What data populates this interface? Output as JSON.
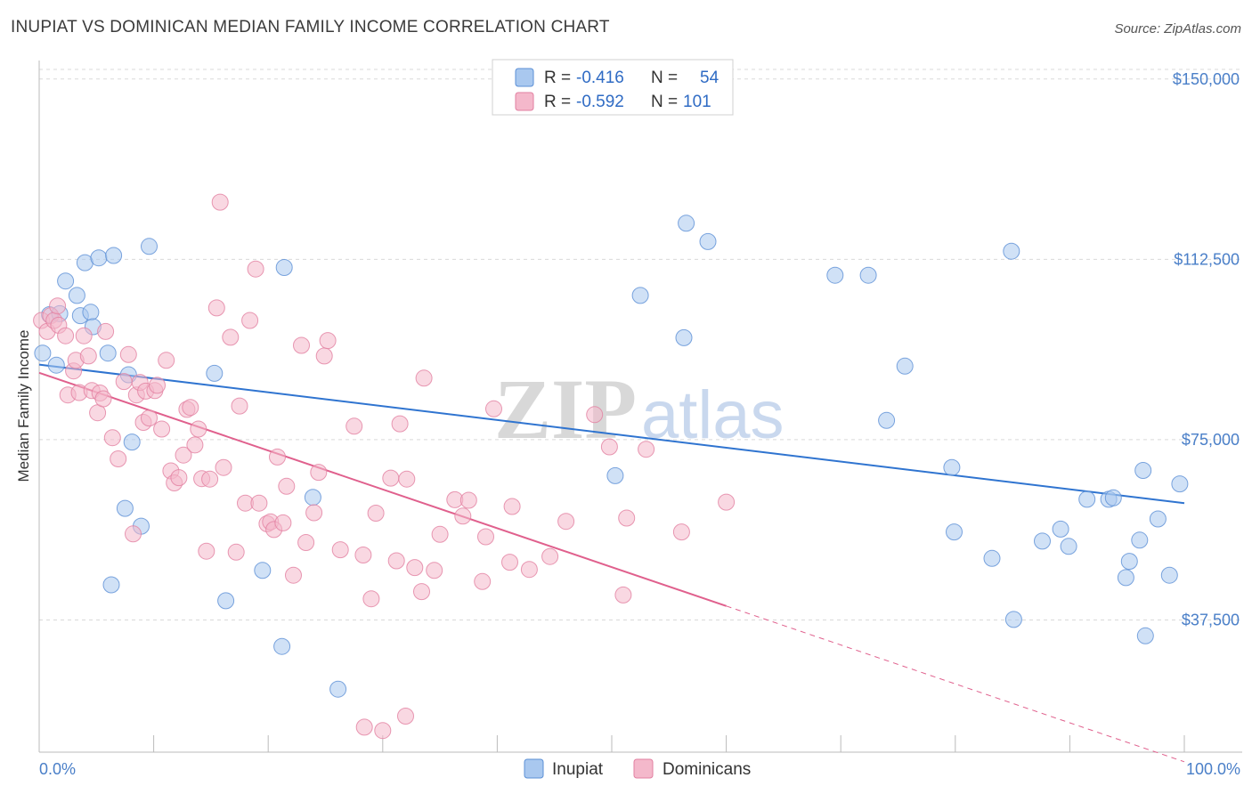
{
  "title": "INUPIAT VS DOMINICAN MEDIAN FAMILY INCOME CORRELATION CHART",
  "source": "Source: ZipAtlas.com",
  "watermark": {
    "zip": "ZIP",
    "atlas": "atlas"
  },
  "colors": {
    "inupiat_fill": "#a9c8ef",
    "inupiat_stroke": "#5b8fd6",
    "inupiat_line": "#2f74d0",
    "dominican_fill": "#f4b8cb",
    "dominican_stroke": "#e27fa0",
    "dominican_line": "#e0608d",
    "grid": "#d9d9d9",
    "axis_text": "#4a7fc8"
  },
  "legend": {
    "rows": [
      {
        "r_label": "R =",
        "r_value": "-0.416",
        "n_label": "N =",
        "n_value": "54"
      },
      {
        "r_label": "R =",
        "r_value": "-0.592",
        "n_label": "N =",
        "n_value": "101"
      }
    ]
  },
  "bottom_legend": [
    "Inupiat",
    "Dominicans"
  ],
  "chart_data": {
    "type": "scatter",
    "title": "INUPIAT VS DOMINICAN MEDIAN FAMILY INCOME CORRELATION CHART",
    "xlabel": "",
    "ylabel": "Median Family Income",
    "xlim": [
      0,
      100
    ],
    "ylim": [
      10000,
      160000
    ],
    "x_tick_labels": [
      "0.0%",
      "100.0%"
    ],
    "y_ticks": [
      37500,
      75000,
      112500,
      150000
    ],
    "y_tick_labels": [
      "$37,500",
      "$75,000",
      "$112,500",
      "$150,000"
    ],
    "grid": true,
    "legend_position": "top-center",
    "series": [
      {
        "name": "Inupiat",
        "r": -0.416,
        "n": 54,
        "trend": {
          "x0": 0,
          "y0": 90600,
          "x1": 100,
          "y1": 61800,
          "extrapolated": false
        },
        "points": [
          [
            0.3,
            93000
          ],
          [
            0.9,
            101000
          ],
          [
            1.5,
            90500
          ],
          [
            1.8,
            101200
          ],
          [
            2.3,
            108000
          ],
          [
            3.3,
            105000
          ],
          [
            3.6,
            100800
          ],
          [
            4.0,
            111800
          ],
          [
            4.5,
            101500
          ],
          [
            4.7,
            98500
          ],
          [
            5.2,
            112800
          ],
          [
            6.0,
            93000
          ],
          [
            6.5,
            113300
          ],
          [
            7.5,
            60700
          ],
          [
            7.8,
            88500
          ],
          [
            8.1,
            74500
          ],
          [
            8.9,
            57000
          ],
          [
            9.6,
            115200
          ],
          [
            6.3,
            44800
          ],
          [
            15.3,
            88800
          ],
          [
            16.3,
            41500
          ],
          [
            19.5,
            47800
          ],
          [
            21.2,
            32000
          ],
          [
            21.4,
            110800
          ],
          [
            23.9,
            63000
          ],
          [
            26.1,
            23100
          ],
          [
            50.3,
            67500
          ],
          [
            52.5,
            105000
          ],
          [
            56.3,
            96200
          ],
          [
            56.5,
            120000
          ],
          [
            58.4,
            116200
          ],
          [
            69.5,
            109200
          ],
          [
            72.4,
            109200
          ],
          [
            75.6,
            90300
          ],
          [
            74.0,
            79000
          ],
          [
            79.7,
            69200
          ],
          [
            79.9,
            55800
          ],
          [
            83.2,
            50300
          ],
          [
            84.9,
            114200
          ],
          [
            85.1,
            37600
          ],
          [
            87.6,
            53900
          ],
          [
            89.2,
            56400
          ],
          [
            89.9,
            52800
          ],
          [
            91.5,
            62600
          ],
          [
            93.4,
            62600
          ],
          [
            93.8,
            62900
          ],
          [
            94.9,
            46300
          ],
          [
            95.2,
            49700
          ],
          [
            96.1,
            54100
          ],
          [
            96.4,
            68600
          ],
          [
            96.6,
            34200
          ],
          [
            97.7,
            58500
          ],
          [
            98.7,
            46800
          ],
          [
            99.6,
            65800
          ]
        ]
      },
      {
        "name": "Dominicans",
        "r": -0.592,
        "n": 101,
        "trend": {
          "x0": 0,
          "y0": 88900,
          "x1": 60,
          "y1": 40400,
          "extrapolated_to": {
            "x": 100,
            "y": 8000
          }
        },
        "points": [
          [
            0.2,
            99800
          ],
          [
            0.7,
            97500
          ],
          [
            1.0,
            100800
          ],
          [
            1.3,
            99800
          ],
          [
            1.6,
            102800
          ],
          [
            1.7,
            98800
          ],
          [
            2.3,
            96600
          ],
          [
            2.5,
            84300
          ],
          [
            3.0,
            89300
          ],
          [
            3.2,
            91500
          ],
          [
            3.5,
            84800
          ],
          [
            3.9,
            96600
          ],
          [
            4.3,
            92400
          ],
          [
            4.6,
            85200
          ],
          [
            5.1,
            80600
          ],
          [
            5.3,
            84700
          ],
          [
            5.6,
            83500
          ],
          [
            5.8,
            97500
          ],
          [
            6.4,
            75400
          ],
          [
            6.9,
            71000
          ],
          [
            7.4,
            87100
          ],
          [
            7.8,
            92700
          ],
          [
            8.2,
            55400
          ],
          [
            8.5,
            84300
          ],
          [
            8.8,
            86900
          ],
          [
            9.1,
            78600
          ],
          [
            9.3,
            85100
          ],
          [
            9.6,
            79500
          ],
          [
            10.1,
            85200
          ],
          [
            10.3,
            86300
          ],
          [
            10.7,
            77200
          ],
          [
            11.1,
            91500
          ],
          [
            11.5,
            68500
          ],
          [
            11.8,
            66000
          ],
          [
            12.2,
            67100
          ],
          [
            12.6,
            71800
          ],
          [
            12.9,
            81300
          ],
          [
            13.2,
            81700
          ],
          [
            13.6,
            73900
          ],
          [
            13.9,
            77200
          ],
          [
            14.2,
            66900
          ],
          [
            14.6,
            51800
          ],
          [
            14.9,
            66800
          ],
          [
            15.5,
            102400
          ],
          [
            15.8,
            124400
          ],
          [
            16.1,
            69200
          ],
          [
            16.7,
            96300
          ],
          [
            17.2,
            51600
          ],
          [
            17.5,
            82000
          ],
          [
            18.0,
            61800
          ],
          [
            18.4,
            99800
          ],
          [
            18.9,
            110500
          ],
          [
            19.2,
            61800
          ],
          [
            19.9,
            57500
          ],
          [
            20.2,
            57900
          ],
          [
            20.5,
            56300
          ],
          [
            20.8,
            71400
          ],
          [
            21.3,
            57700
          ],
          [
            21.6,
            65300
          ],
          [
            22.2,
            46800
          ],
          [
            22.9,
            94600
          ],
          [
            23.3,
            53600
          ],
          [
            24.0,
            59800
          ],
          [
            24.4,
            68200
          ],
          [
            24.9,
            92400
          ],
          [
            25.2,
            95600
          ],
          [
            26.3,
            52100
          ],
          [
            27.5,
            77800
          ],
          [
            28.3,
            51000
          ],
          [
            29.0,
            41900
          ],
          [
            29.4,
            59700
          ],
          [
            30.7,
            67000
          ],
          [
            31.2,
            49800
          ],
          [
            31.5,
            78300
          ],
          [
            32.1,
            66800
          ],
          [
            32.8,
            48400
          ],
          [
            33.4,
            43400
          ],
          [
            33.6,
            87800
          ],
          [
            34.5,
            47800
          ],
          [
            35.0,
            55300
          ],
          [
            36.3,
            62500
          ],
          [
            37.0,
            59100
          ],
          [
            37.5,
            62400
          ],
          [
            38.7,
            45500
          ],
          [
            39.0,
            54800
          ],
          [
            39.7,
            81400
          ],
          [
            41.1,
            49500
          ],
          [
            41.3,
            61100
          ],
          [
            42.8,
            48000
          ],
          [
            44.6,
            50700
          ],
          [
            48.5,
            80200
          ],
          [
            49.8,
            73500
          ],
          [
            51.0,
            42700
          ],
          [
            51.3,
            58700
          ],
          [
            56.1,
            55800
          ],
          [
            53.0,
            73000
          ],
          [
            28.4,
            15200
          ],
          [
            32.0,
            17500
          ],
          [
            60.0,
            62000
          ],
          [
            30.0,
            14500
          ],
          [
            46.0,
            58000
          ]
        ]
      }
    ]
  }
}
